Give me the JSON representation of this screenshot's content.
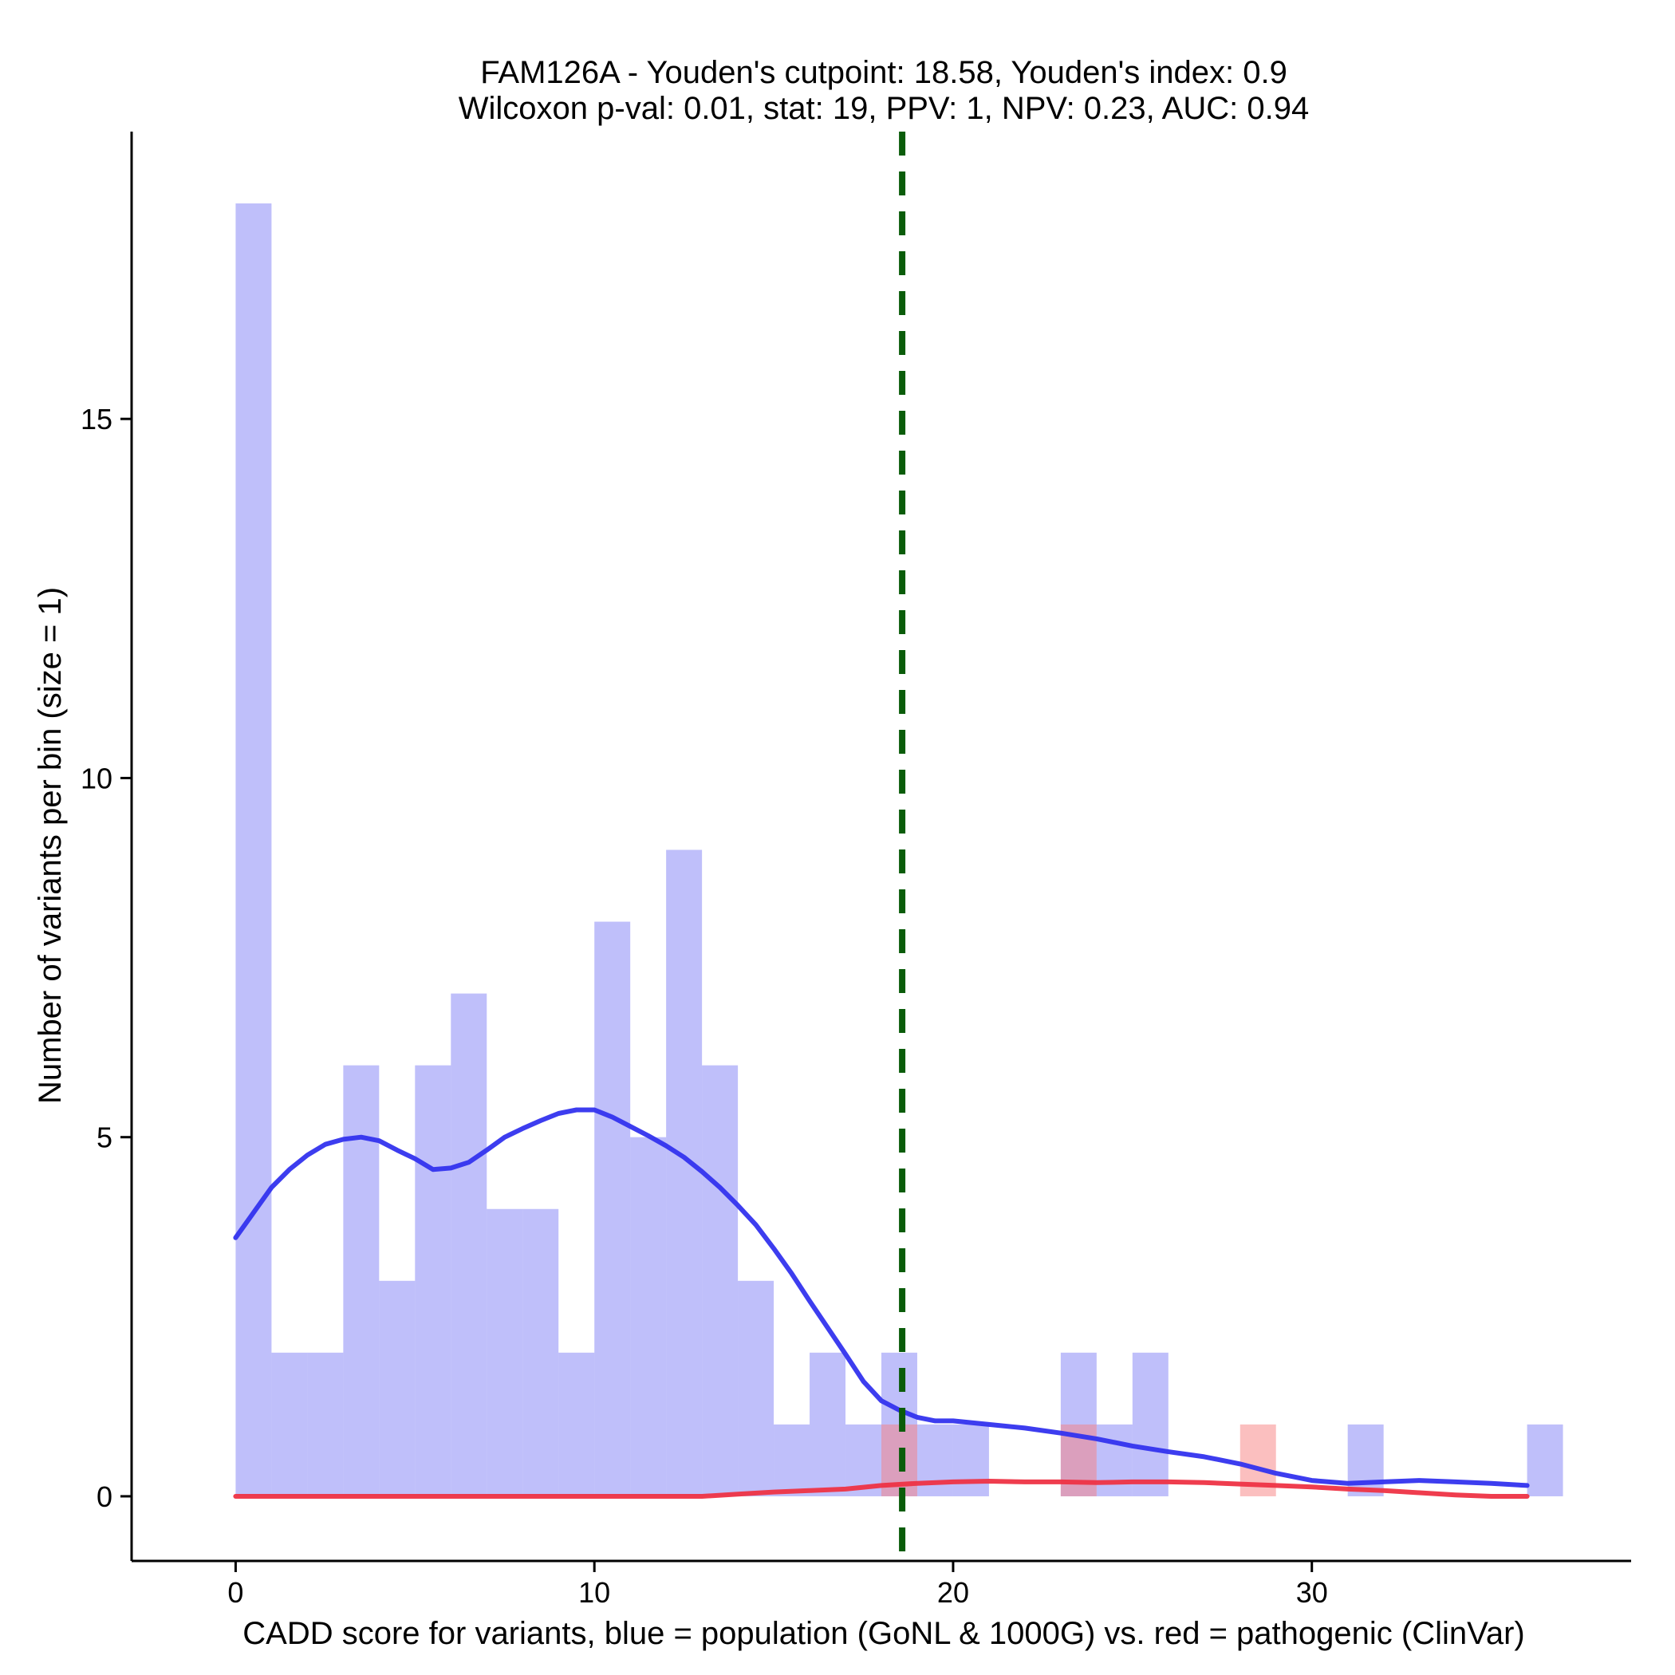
{
  "chart_data": {
    "type": "bar",
    "title_line1": "FAM126A - Youden's cutpoint: 18.58, Youden's index: 0.9",
    "title_line2": "Wilcoxon p-val: 0.01, stat: 19, PPV: 1, NPV: 0.23, AUC: 0.94",
    "xlabel": "CADD score for variants, blue = population (GoNL & 1000G) vs. red = pathogenic (ClinVar)",
    "ylabel": "Number of variants per bin (size = 1)",
    "xlim": [
      -2.9,
      38.9
    ],
    "ylim": [
      -0.9,
      19.0
    ],
    "x_ticks": [
      0,
      10,
      20,
      30
    ],
    "y_ticks": [
      0,
      5,
      10,
      15
    ],
    "bin_size": 1,
    "cutpoint": 18.58,
    "colors": {
      "population": "#8080F5",
      "pathogenic": "#F88080",
      "population_density": "#3333EE",
      "pathogenic_density": "#EE3344",
      "cutpoint_line": "#0A5C0A"
    },
    "series": [
      {
        "name": "population (GoNL & 1000G)",
        "bins": [
          {
            "start": 0,
            "count": 18
          },
          {
            "start": 1,
            "count": 2
          },
          {
            "start": 2,
            "count": 2
          },
          {
            "start": 3,
            "count": 6
          },
          {
            "start": 4,
            "count": 3
          },
          {
            "start": 5,
            "count": 6
          },
          {
            "start": 6,
            "count": 7
          },
          {
            "start": 7,
            "count": 4
          },
          {
            "start": 8,
            "count": 4
          },
          {
            "start": 9,
            "count": 2
          },
          {
            "start": 10,
            "count": 8
          },
          {
            "start": 11,
            "count": 5
          },
          {
            "start": 12,
            "count": 9
          },
          {
            "start": 13,
            "count": 6
          },
          {
            "start": 14,
            "count": 3
          },
          {
            "start": 15,
            "count": 1
          },
          {
            "start": 16,
            "count": 2
          },
          {
            "start": 17,
            "count": 1
          },
          {
            "start": 18,
            "count": 2
          },
          {
            "start": 19,
            "count": 1
          },
          {
            "start": 20,
            "count": 1
          },
          {
            "start": 23,
            "count": 2
          },
          {
            "start": 24,
            "count": 1
          },
          {
            "start": 25,
            "count": 2
          },
          {
            "start": 31,
            "count": 1
          },
          {
            "start": 36,
            "count": 1
          }
        ]
      },
      {
        "name": "pathogenic (ClinVar)",
        "bins": [
          {
            "start": 18,
            "count": 1
          },
          {
            "start": 23,
            "count": 1
          },
          {
            "start": 28,
            "count": 1
          }
        ]
      }
    ],
    "density_population": {
      "x": [
        0,
        0.5,
        1,
        1.5,
        2,
        2.5,
        3,
        3.5,
        4,
        4.5,
        5,
        5.5,
        6,
        6.5,
        7,
        7.5,
        8,
        8.5,
        9,
        9.5,
        10,
        10.5,
        11,
        11.5,
        12,
        12.5,
        13,
        13.5,
        14,
        14.5,
        15,
        15.5,
        16,
        16.5,
        17,
        17.5,
        18,
        18.5,
        19,
        19.5,
        20,
        21,
        22,
        23,
        24,
        25,
        26,
        27,
        28,
        29,
        30,
        31,
        32,
        33,
        34,
        35,
        36
      ],
      "y": [
        3.6,
        3.95,
        4.3,
        4.55,
        4.75,
        4.9,
        4.97,
        5.0,
        4.95,
        4.82,
        4.7,
        4.55,
        4.57,
        4.65,
        4.82,
        5.0,
        5.12,
        5.23,
        5.33,
        5.38,
        5.38,
        5.28,
        5.15,
        5.02,
        4.88,
        4.72,
        4.52,
        4.3,
        4.05,
        3.78,
        3.45,
        3.1,
        2.72,
        2.35,
        1.98,
        1.6,
        1.33,
        1.2,
        1.1,
        1.05,
        1.05,
        1.0,
        0.95,
        0.88,
        0.8,
        0.7,
        0.62,
        0.55,
        0.45,
        0.32,
        0.22,
        0.18,
        0.2,
        0.22,
        0.2,
        0.18,
        0.15
      ]
    },
    "density_pathogenic": {
      "x": [
        0,
        5,
        10,
        13,
        14,
        15,
        16,
        17,
        18,
        19,
        20,
        21,
        22,
        23,
        24,
        25,
        26,
        27,
        28,
        29,
        30,
        31,
        32,
        33,
        34,
        35,
        36
      ],
      "y": [
        0,
        0,
        0,
        0,
        0.03,
        0.06,
        0.08,
        0.1,
        0.15,
        0.18,
        0.2,
        0.21,
        0.2,
        0.2,
        0.19,
        0.2,
        0.2,
        0.19,
        0.17,
        0.15,
        0.13,
        0.1,
        0.08,
        0.05,
        0.02,
        0.0,
        0.0
      ]
    }
  }
}
